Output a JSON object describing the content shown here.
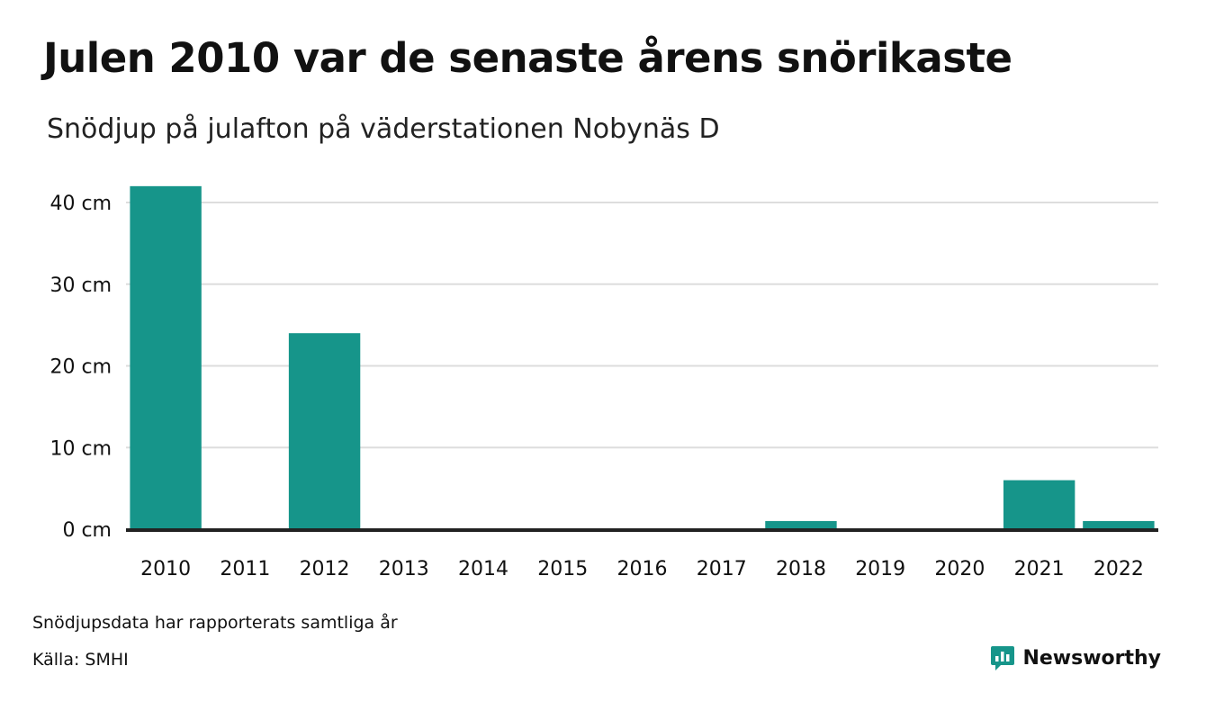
{
  "header": {
    "title": "Julen 2010 var de senaste årens snörikaste",
    "subtitle": "Snödjup på julafton på väderstationen Nobynäs D"
  },
  "footer": {
    "note": "Snödjupsdata har rapporterats samtliga år",
    "source": "Källa: SMHI",
    "brand": "Newsworthy",
    "brand_icon": "newsworthy-logo-icon"
  },
  "colors": {
    "bar": "#16958A",
    "grid": "#DDDDDD",
    "axis": "#222222",
    "brand": "#16958A"
  },
  "chart_data": {
    "type": "bar",
    "title": "Julen 2010 var de senaste årens snörikaste",
    "subtitle": "Snödjup på julafton på väderstationen Nobynäs D",
    "xlabel": "",
    "ylabel": "",
    "categories": [
      "2010",
      "2011",
      "2012",
      "2013",
      "2014",
      "2015",
      "2016",
      "2017",
      "2018",
      "2019",
      "2020",
      "2021",
      "2022"
    ],
    "values": [
      42,
      0,
      24,
      0,
      0,
      0,
      0,
      0,
      1,
      0,
      0,
      6,
      1
    ],
    "unit": "cm",
    "ylim": [
      0,
      40
    ],
    "yticks": [
      0,
      10,
      20,
      30,
      40
    ],
    "ytick_labels": [
      "0 cm",
      "10 cm",
      "20 cm",
      "30 cm",
      "40 cm"
    ],
    "grid": true,
    "legend": "none"
  }
}
